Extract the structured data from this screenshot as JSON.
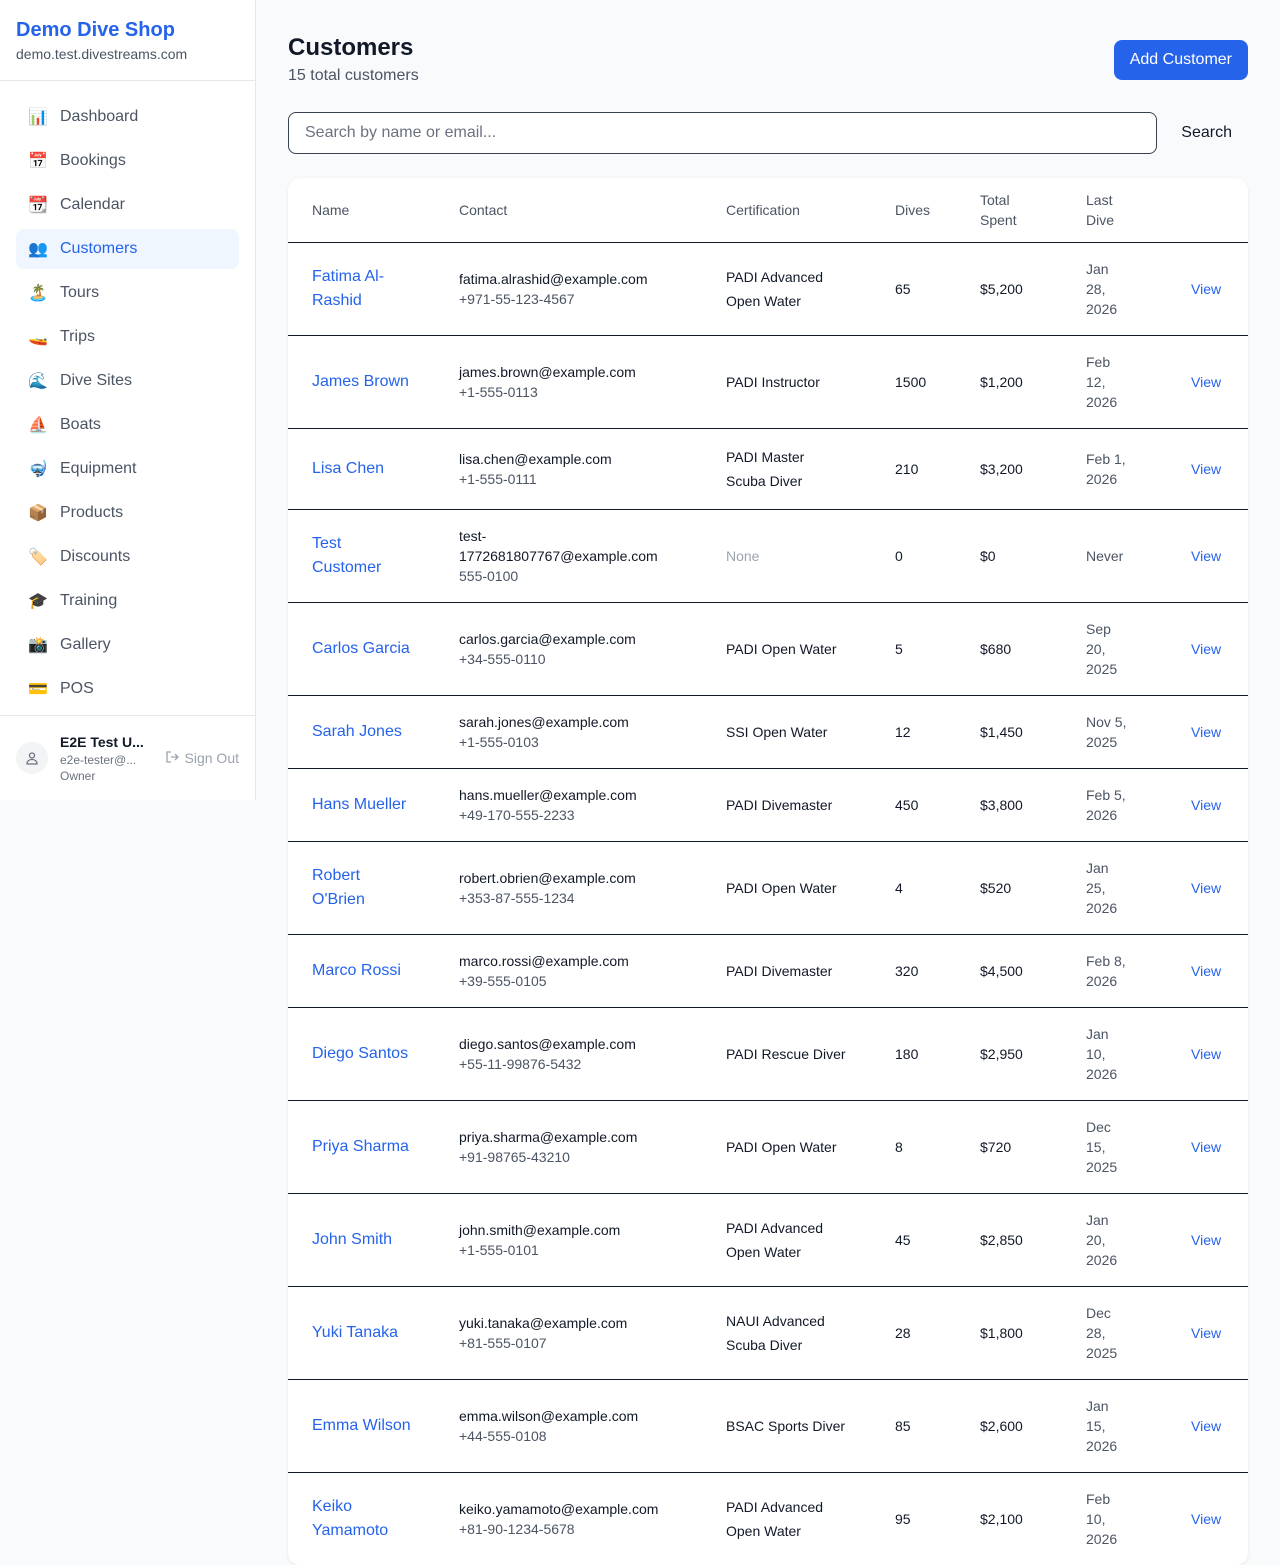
{
  "sidebar": {
    "shop_name": "Demo Dive Shop",
    "domain": "demo.test.divestreams.com",
    "items": [
      {
        "icon": "📊",
        "label": "Dashboard"
      },
      {
        "icon": "📅",
        "label": "Bookings"
      },
      {
        "icon": "📆",
        "label": "Calendar"
      },
      {
        "icon": "👥",
        "label": "Customers",
        "active": true
      },
      {
        "icon": "🏝️",
        "label": "Tours"
      },
      {
        "icon": "🚤",
        "label": "Trips"
      },
      {
        "icon": "🌊",
        "label": "Dive Sites"
      },
      {
        "icon": "⛵",
        "label": "Boats"
      },
      {
        "icon": "🤿",
        "label": "Equipment"
      },
      {
        "icon": "📦",
        "label": "Products"
      },
      {
        "icon": "🏷️",
        "label": "Discounts"
      },
      {
        "icon": "🎓",
        "label": "Training"
      },
      {
        "icon": "📸",
        "label": "Gallery"
      },
      {
        "icon": "💳",
        "label": "POS"
      }
    ],
    "user": {
      "name": "E2E Test U...",
      "email": "e2e-tester@...",
      "role": "Owner",
      "sign_out": "Sign Out"
    }
  },
  "header": {
    "title": "Customers",
    "subtitle": "15 total customers",
    "add_button": "Add Customer"
  },
  "search": {
    "placeholder": "Search by name or email...",
    "button": "Search"
  },
  "table": {
    "columns": [
      "Name",
      "Contact",
      "Certification",
      "Dives",
      "Total Spent",
      "Last Dive"
    ],
    "view_label": "View",
    "rows": [
      {
        "name": "Fatima Al-Rashid",
        "email": "fatima.alrashid@example.com",
        "phone": "+971-55-123-4567",
        "cert": "PADI Advanced Open Water",
        "dives": "65",
        "spent": "$5,200",
        "last": "Jan 28, 2026"
      },
      {
        "name": "James Brown",
        "email": "james.brown@example.com",
        "phone": "+1-555-0113",
        "cert": "PADI Instructor",
        "dives": "1500",
        "spent": "$1,200",
        "last": "Feb 12, 2026"
      },
      {
        "name": "Lisa Chen",
        "email": "lisa.chen@example.com",
        "phone": "+1-555-0111",
        "cert": "PADI Master Scuba Diver",
        "dives": "210",
        "spent": "$3,200",
        "last": "Feb 1, 2026"
      },
      {
        "name": "Test Customer",
        "email": "test-1772681807767@example.com",
        "phone": "555-0100",
        "cert": "None",
        "dives": "0",
        "spent": "$0",
        "last": "Never"
      },
      {
        "name": "Carlos Garcia",
        "email": "carlos.garcia@example.com",
        "phone": "+34-555-0110",
        "cert": "PADI Open Water",
        "dives": "5",
        "spent": "$680",
        "last": "Sep 20, 2025"
      },
      {
        "name": "Sarah Jones",
        "email": "sarah.jones@example.com",
        "phone": "+1-555-0103",
        "cert": "SSI Open Water",
        "dives": "12",
        "spent": "$1,450",
        "last": "Nov 5, 2025"
      },
      {
        "name": "Hans Mueller",
        "email": "hans.mueller@example.com",
        "phone": "+49-170-555-2233",
        "cert": "PADI Divemaster",
        "dives": "450",
        "spent": "$3,800",
        "last": "Feb 5, 2026"
      },
      {
        "name": "Robert O'Brien",
        "email": "robert.obrien@example.com",
        "phone": "+353-87-555-1234",
        "cert": "PADI Open Water",
        "dives": "4",
        "spent": "$520",
        "last": "Jan 25, 2026"
      },
      {
        "name": "Marco Rossi",
        "email": "marco.rossi@example.com",
        "phone": "+39-555-0105",
        "cert": "PADI Divemaster",
        "dives": "320",
        "spent": "$4,500",
        "last": "Feb 8, 2026"
      },
      {
        "name": "Diego Santos",
        "email": "diego.santos@example.com",
        "phone": "+55-11-99876-5432",
        "cert": "PADI Rescue Diver",
        "dives": "180",
        "spent": "$2,950",
        "last": "Jan 10, 2026"
      },
      {
        "name": "Priya Sharma",
        "email": "priya.sharma@example.com",
        "phone": "+91-98765-43210",
        "cert": "PADI Open Water",
        "dives": "8",
        "spent": "$720",
        "last": "Dec 15, 2025"
      },
      {
        "name": "John Smith",
        "email": "john.smith@example.com",
        "phone": "+1-555-0101",
        "cert": "PADI Advanced Open Water",
        "dives": "45",
        "spent": "$2,850",
        "last": "Jan 20, 2026"
      },
      {
        "name": "Yuki Tanaka",
        "email": "yuki.tanaka@example.com",
        "phone": "+81-555-0107",
        "cert": "NAUI Advanced Scuba Diver",
        "dives": "28",
        "spent": "$1,800",
        "last": "Dec 28, 2025"
      },
      {
        "name": "Emma Wilson",
        "email": "emma.wilson@example.com",
        "phone": "+44-555-0108",
        "cert": "BSAC Sports Diver",
        "dives": "85",
        "spent": "$2,600",
        "last": "Jan 15, 2026"
      },
      {
        "name": "Keiko Yamamoto",
        "email": "keiko.yamamoto@example.com",
        "phone": "+81-90-1234-5678",
        "cert": "PADI Advanced Open Water",
        "dives": "95",
        "spent": "$2,100",
        "last": "Feb 10, 2026"
      }
    ]
  }
}
